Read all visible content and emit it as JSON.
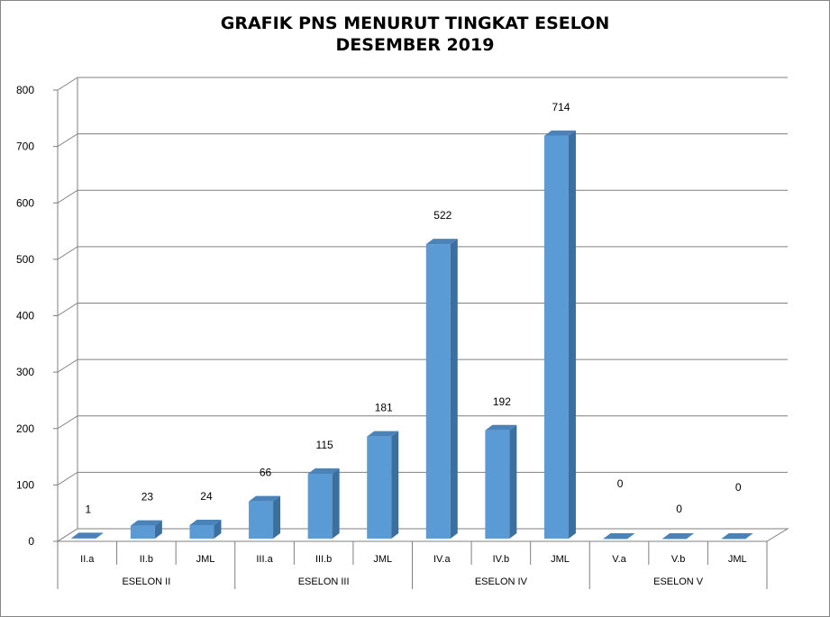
{
  "chart_data": {
    "type": "bar",
    "title": "GRAFIK PNS MENURUT TINGKAT ESELON",
    "subtitle": "DESEMBER 2019",
    "xlabel": "",
    "ylabel": "",
    "ylim": [
      0,
      800
    ],
    "yticks": [
      0,
      100,
      200,
      300,
      400,
      500,
      600,
      700,
      800
    ],
    "grid": true,
    "legend": "none",
    "categories": [
      "II.a",
      "II.b",
      "JML",
      "III.a",
      "III.b",
      "JML",
      "IV.a",
      "IV.b",
      "JML",
      "V.a",
      "V.b",
      "JML"
    ],
    "values": [
      1,
      23,
      24,
      66,
      115,
      181,
      522,
      192,
      714,
      0,
      0,
      0
    ],
    "groups": [
      {
        "label": "ESELON II",
        "size": 3
      },
      {
        "label": "ESELON III",
        "size": 3
      },
      {
        "label": "ESELON IV",
        "size": 3
      },
      {
        "label": "ESELON V",
        "size": 3
      }
    ],
    "colors": {
      "bar_front": "#5B9BD5",
      "bar_side": "#3C6E9E",
      "bar_top": "#4A82BA",
      "grid": "#7F7F7F"
    }
  }
}
